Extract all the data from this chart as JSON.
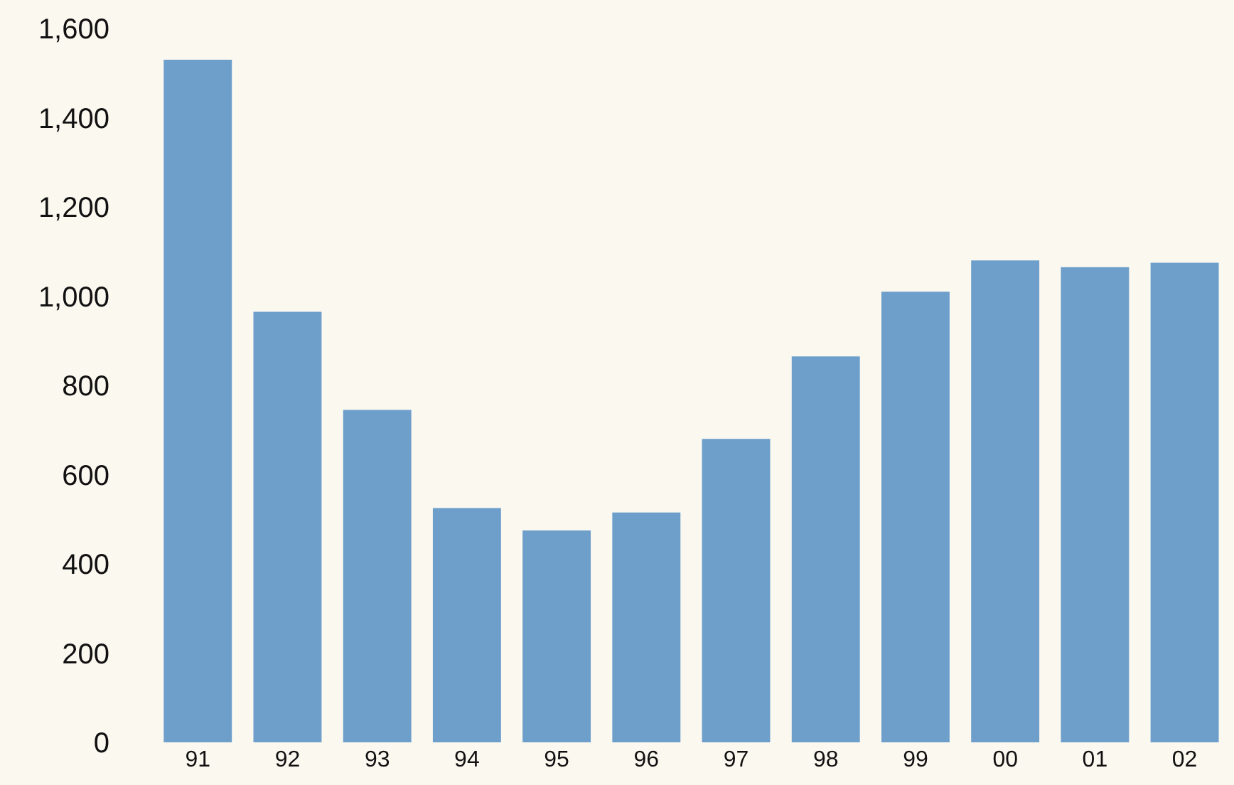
{
  "chart_data": {
    "type": "bar",
    "categories": [
      "91",
      "92",
      "93",
      "94",
      "95",
      "96",
      "97",
      "98",
      "99",
      "00",
      "01",
      "02"
    ],
    "values": [
      1530,
      965,
      745,
      525,
      475,
      515,
      680,
      865,
      1010,
      1080,
      1065,
      1075
    ],
    "color": "#6e9fcb",
    "ylim": [
      0,
      1600
    ],
    "yticks": [
      0,
      {
        "value": 200,
        "label": "200"
      },
      {
        "value": 400,
        "label": "400"
      },
      {
        "value": 600,
        "label": "600"
      },
      {
        "value": 800,
        "label": "800"
      },
      {
        "value": 1000,
        "label": "1,000"
      },
      {
        "value": 1200,
        "label": "1,200"
      },
      {
        "value": 1400,
        "label": "1,400"
      },
      {
        "value": 1600,
        "label": "1,600"
      }
    ],
    "grid": false,
    "legend": false
  }
}
